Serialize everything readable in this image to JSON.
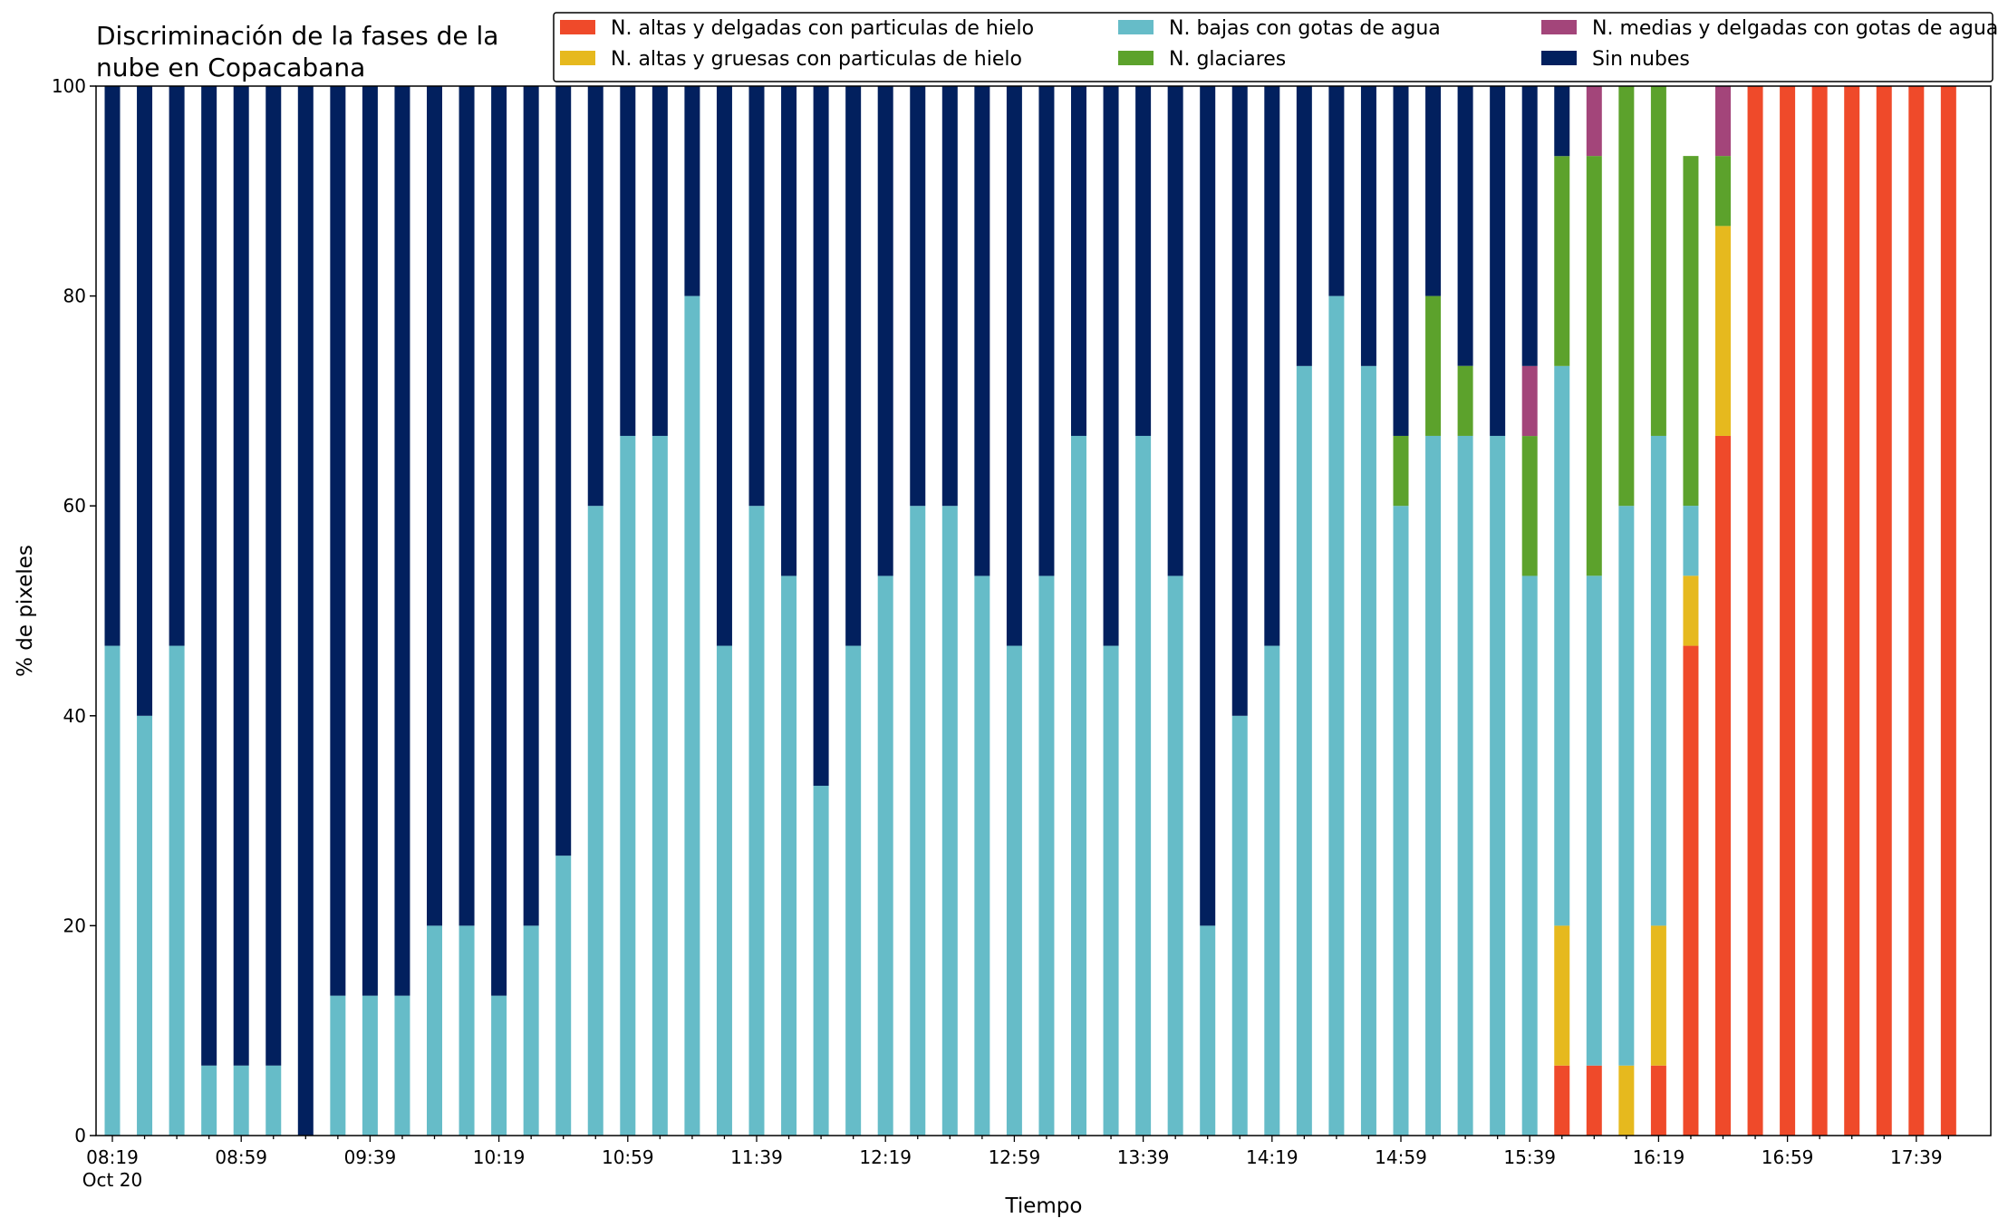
{
  "chart_data": {
    "type": "bar",
    "stacked": true,
    "title_lines": [
      "Discriminación de la fases de la",
      "nube en Copacabana"
    ],
    "xlabel": "Tiempo",
    "ylabel": "% de pixeles",
    "ylim": [
      0,
      100
    ],
    "yticks": [
      0,
      20,
      40,
      60,
      80,
      100
    ],
    "xtick_labels": [
      "08:19",
      "08:59",
      "09:39",
      "10:19",
      "10:59",
      "11:39",
      "12:19",
      "12:59",
      "13:39",
      "14:19",
      "14:59",
      "15:39",
      "16:19",
      "16:59",
      "17:39"
    ],
    "xtick_sublabel": "Oct 20",
    "grid": false,
    "legend_position": "top-right",
    "legend_columns": 3,
    "categories": [
      "08:19",
      "08:29",
      "08:39",
      "08:49",
      "08:59",
      "09:09",
      "09:19",
      "09:29",
      "09:39",
      "09:49",
      "09:59",
      "10:09",
      "10:19",
      "10:29",
      "10:39",
      "10:49",
      "10:59",
      "11:09",
      "11:19",
      "11:29",
      "11:39",
      "11:49",
      "11:59",
      "12:09",
      "12:19",
      "12:29",
      "12:39",
      "12:49",
      "12:59",
      "13:09",
      "13:19",
      "13:29",
      "13:39",
      "13:49",
      "13:59",
      "14:09",
      "14:19",
      "14:29",
      "14:39",
      "14:49",
      "14:59",
      "15:09",
      "15:19",
      "15:29",
      "15:39",
      "15:49",
      "15:59",
      "16:09",
      "16:19",
      "16:29",
      "16:39",
      "16:49",
      "16:59",
      "17:09",
      "17:19",
      "17:29",
      "17:39",
      "17:49"
    ],
    "series": [
      {
        "name": "N. altas y delgadas con particulas de hielo",
        "color": "#ef4a2a",
        "values": [
          0,
          0,
          0,
          0,
          0,
          0,
          0,
          0,
          0,
          0,
          0,
          0,
          0,
          0,
          0,
          0,
          0,
          0,
          0,
          0,
          0,
          0,
          0,
          0,
          0,
          0,
          0,
          0,
          0,
          0,
          0,
          0,
          0,
          0,
          0,
          0,
          0,
          0,
          0,
          0,
          0,
          0,
          0,
          0,
          0,
          6.67,
          6.67,
          0,
          6.67,
          46.67,
          66.67,
          100,
          100,
          100,
          100,
          100,
          100,
          100
        ]
      },
      {
        "name": "N. altas y gruesas con particulas de hielo",
        "color": "#e6b91e",
        "values": [
          0,
          0,
          0,
          0,
          0,
          0,
          0,
          0,
          0,
          0,
          0,
          0,
          0,
          0,
          0,
          0,
          0,
          0,
          0,
          0,
          0,
          0,
          0,
          0,
          0,
          0,
          0,
          0,
          0,
          0,
          0,
          0,
          0,
          0,
          0,
          0,
          0,
          0,
          0,
          0,
          0,
          0,
          0,
          0,
          0,
          13.33,
          0,
          6.67,
          13.33,
          6.67,
          20,
          0,
          0,
          0,
          0,
          0,
          0,
          0
        ]
      },
      {
        "name": "N. bajas con gotas de agua",
        "color": "#66bcc8",
        "values": [
          46.67,
          40,
          46.67,
          6.67,
          6.67,
          6.67,
          0,
          13.33,
          13.33,
          13.33,
          20,
          20,
          13.33,
          20,
          26.67,
          60,
          66.67,
          66.67,
          80,
          46.67,
          60,
          53.33,
          33.33,
          46.67,
          53.33,
          60,
          60,
          53.33,
          46.67,
          53.33,
          66.67,
          46.67,
          66.67,
          53.33,
          20,
          40,
          46.67,
          73.33,
          80,
          73.33,
          60,
          66.67,
          66.67,
          66.67,
          53.33,
          53.33,
          46.67,
          53.33,
          46.67,
          6.67,
          0,
          0,
          0,
          0,
          0,
          0,
          0,
          0
        ]
      },
      {
        "name": "N. glaciares",
        "color": "#5ca22c",
        "values": [
          0,
          0,
          0,
          0,
          0,
          0,
          0,
          0,
          0,
          0,
          0,
          0,
          0,
          0,
          0,
          0,
          0,
          0,
          0,
          0,
          0,
          0,
          0,
          0,
          0,
          0,
          0,
          0,
          0,
          0,
          0,
          0,
          0,
          0,
          0,
          0,
          0,
          0,
          0,
          0,
          6.67,
          13.33,
          6.67,
          0,
          13.33,
          20,
          40,
          40,
          33.33,
          33.33,
          6.67,
          0,
          0,
          0,
          0,
          0,
          0,
          0
        ]
      },
      {
        "name": "N. medias y delgadas con gotas de agua",
        "color": "#a3457a",
        "values": [
          0,
          0,
          0,
          0,
          0,
          0,
          0,
          0,
          0,
          0,
          0,
          0,
          0,
          0,
          0,
          0,
          0,
          0,
          0,
          0,
          0,
          0,
          0,
          0,
          0,
          0,
          0,
          0,
          0,
          0,
          0,
          0,
          0,
          0,
          0,
          0,
          0,
          0,
          0,
          0,
          0,
          0,
          0,
          0,
          6.67,
          0,
          6.67,
          0,
          0,
          0,
          6.67,
          0,
          0,
          0,
          0,
          0,
          0,
          0
        ]
      },
      {
        "name": "Sin nubes",
        "color": "#02205e",
        "values": [
          53.33,
          60,
          53.33,
          93.33,
          93.33,
          93.33,
          100,
          86.67,
          86.67,
          86.67,
          80,
          80,
          86.67,
          80,
          73.33,
          40,
          33.33,
          33.33,
          20,
          53.33,
          40,
          46.67,
          66.67,
          53.33,
          46.67,
          40,
          40,
          46.67,
          53.33,
          46.67,
          33.33,
          53.33,
          33.33,
          46.67,
          80,
          60,
          53.33,
          26.67,
          20,
          26.67,
          33.33,
          20,
          26.67,
          33.33,
          26.67,
          6.67,
          0,
          0,
          0,
          0,
          0,
          0,
          0,
          0,
          0,
          0,
          0,
          0
        ]
      }
    ]
  }
}
